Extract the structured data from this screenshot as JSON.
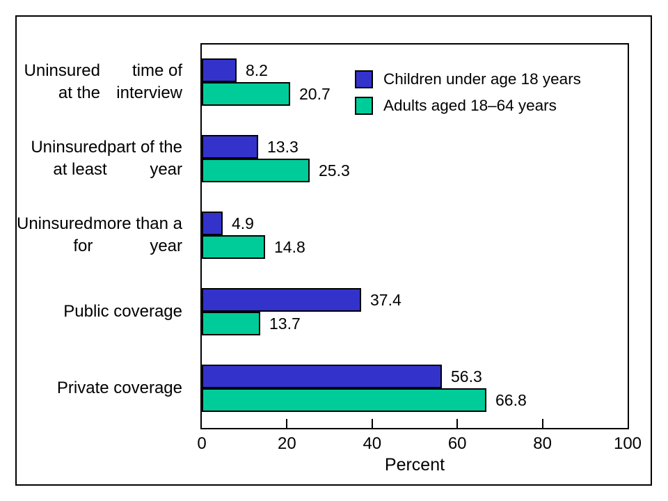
{
  "chart_data": {
    "type": "bar",
    "orientation": "horizontal",
    "title": "",
    "xlabel": "Percent",
    "ylabel": "",
    "xlim": [
      0,
      100
    ],
    "xticks": [
      0,
      20,
      40,
      60,
      80,
      100
    ],
    "grid": false,
    "legend_position": "inside-top-right",
    "categories": [
      {
        "label_lines": [
          "Uninsured at the",
          "time of interview"
        ]
      },
      {
        "label_lines": [
          "Uninsured at least",
          "part of the year"
        ]
      },
      {
        "label_lines": [
          "Uninsured for",
          "more than a year"
        ]
      },
      {
        "label_lines": [
          "Public coverage"
        ]
      },
      {
        "label_lines": [
          "Private coverage"
        ]
      }
    ],
    "series": [
      {
        "name": "Children under age 18 years",
        "color": "#3333cc",
        "values": [
          8.2,
          13.3,
          4.9,
          37.4,
          56.3
        ]
      },
      {
        "name": "Adults aged 18–64 years",
        "color": "#00cc99",
        "values": [
          20.7,
          25.3,
          14.8,
          13.7,
          66.8
        ]
      }
    ],
    "colors": {
      "bar_border": "#000000",
      "axis": "#000000",
      "text": "#000000",
      "background": "#ffffff"
    }
  }
}
